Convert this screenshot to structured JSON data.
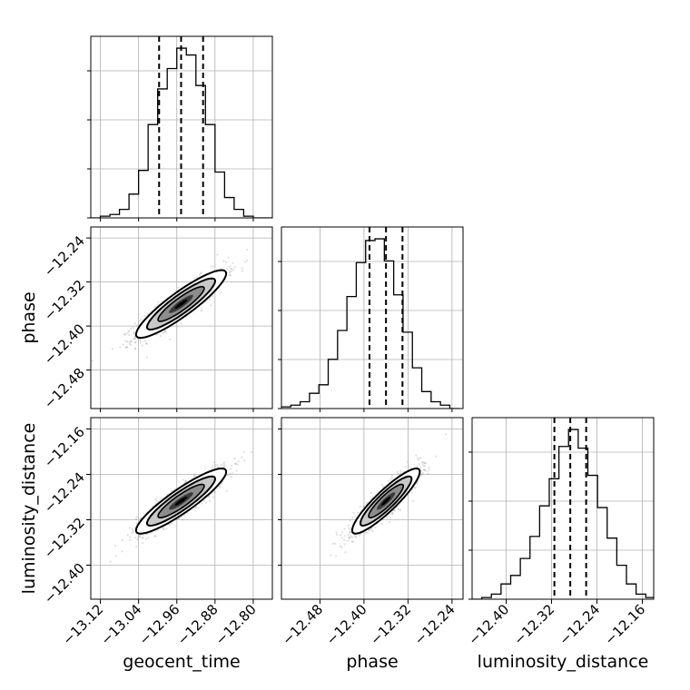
{
  "chart_data": {
    "type": "corner",
    "parameters": [
      "geocent_time",
      "phase",
      "luminosity_distance"
    ],
    "grid": true,
    "axes": [
      {
        "name": "geocent_time",
        "range": [
          -13.14,
          -12.76
        ],
        "ticks": [
          -13.12,
          -13.04,
          -12.96,
          -12.88,
          -12.8
        ],
        "tick_labels": [
          "−13.12",
          "−13.04",
          "−12.96",
          "−12.88",
          "−12.80"
        ]
      },
      {
        "name": "phase",
        "range": [
          -12.55,
          -12.22
        ],
        "ticks": [
          -12.48,
          -12.4,
          -12.32,
          -12.24
        ],
        "tick_labels": [
          "−12.48",
          "−12.40",
          "−12.32",
          "−12.24"
        ]
      },
      {
        "name": "luminosity_distance",
        "range": [
          -12.46,
          -12.14
        ],
        "ticks": [
          -12.4,
          -12.32,
          -12.24,
          -12.16
        ],
        "tick_labels": [
          "−12.40",
          "−12.32",
          "−12.24",
          "−12.16"
        ]
      }
    ],
    "histograms": [
      {
        "parameter": "geocent_time",
        "quantiles": [
          -12.997,
          -12.951,
          -12.905
        ],
        "bin_edges": [
          -13.14,
          -13.12,
          -13.1,
          -13.08,
          -13.06,
          -13.04,
          -13.02,
          -13.0,
          -12.98,
          -12.96,
          -12.94,
          -12.92,
          -12.9,
          -12.88,
          -12.86,
          -12.84,
          -12.82,
          -12.8,
          -12.78,
          -12.76
        ],
        "counts": [
          0,
          1,
          2,
          5,
          14,
          28,
          55,
          76,
          88,
          100,
          96,
          78,
          55,
          27,
          12,
          5,
          1,
          0,
          0
        ]
      },
      {
        "parameter": "phase",
        "quantiles": [
          -12.39,
          -12.36,
          -12.33
        ],
        "bin_edges": [
          -12.55,
          -12.533,
          -12.516,
          -12.499,
          -12.482,
          -12.465,
          -12.448,
          -12.431,
          -12.414,
          -12.397,
          -12.38,
          -12.363,
          -12.346,
          -12.329,
          -12.312,
          -12.295,
          -12.278,
          -12.261,
          -12.244,
          -12.227
        ],
        "counts": [
          1,
          2,
          4,
          9,
          14,
          29,
          46,
          66,
          86,
          99,
          100,
          87,
          67,
          45,
          24,
          10,
          4,
          2,
          0
        ]
      },
      {
        "parameter": "luminosity_distance",
        "quantiles": [
          -12.315,
          -12.287,
          -12.259
        ],
        "bin_edges": [
          -12.46,
          -12.443,
          -12.426,
          -12.409,
          -12.392,
          -12.375,
          -12.358,
          -12.341,
          -12.324,
          -12.307,
          -12.29,
          -12.273,
          -12.256,
          -12.239,
          -12.222,
          -12.205,
          -12.188,
          -12.171,
          -12.154,
          -12.137
        ],
        "counts": [
          0,
          1,
          3,
          9,
          14,
          24,
          37,
          55,
          71,
          90,
          100,
          89,
          73,
          54,
          36,
          20,
          9,
          3,
          1
        ]
      }
    ],
    "scatter_panels": [
      {
        "x": "geocent_time",
        "y": "phase",
        "center": [
          -12.951,
          -12.36
        ],
        "sd": [
          0.046,
          0.03
        ],
        "rho": 0.9
      },
      {
        "x": "geocent_time",
        "y": "luminosity_distance",
        "center": [
          -12.951,
          -12.287
        ],
        "sd": [
          0.046,
          0.028
        ],
        "rho": 0.9
      },
      {
        "x": "phase",
        "y": "luminosity_distance",
        "center": [
          -12.36,
          -12.287
        ],
        "sd": [
          0.03,
          0.028
        ],
        "rho": 0.9
      }
    ]
  }
}
